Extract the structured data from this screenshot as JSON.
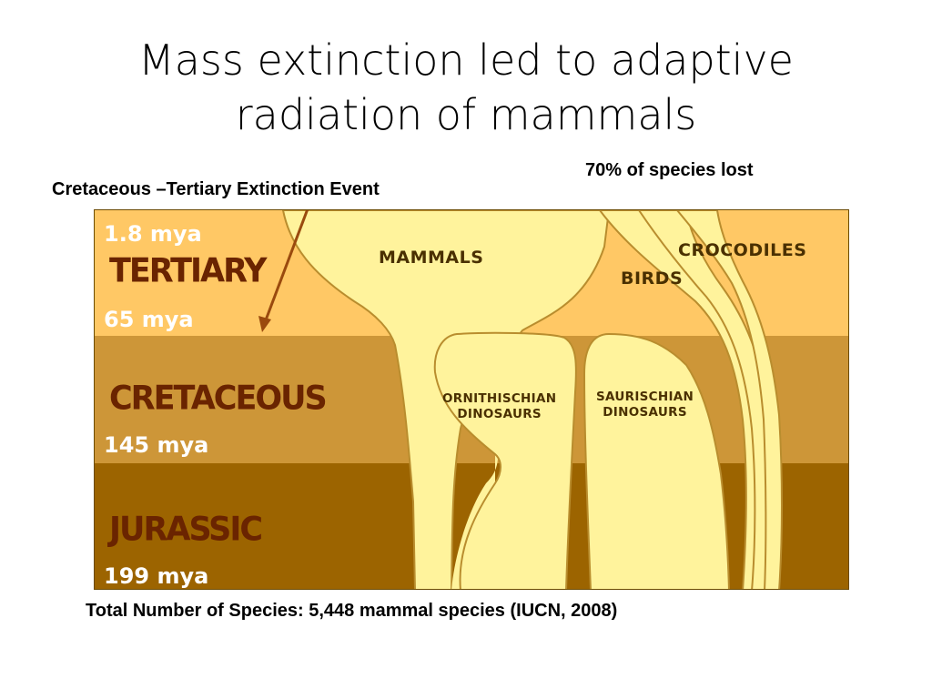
{
  "slide": {
    "title_lines": [
      "Mass extinction led to adaptive",
      "radiation of mammals"
    ],
    "species_lost": "70% of species lost",
    "event_label": "Cretaceous –Tertiary Extinction Event",
    "footer": "Total Number of Species: 5,448 mammal species (IUCN, 2008)"
  },
  "diagram": {
    "periods": {
      "tertiary": "TERTIARY",
      "cretaceous": "CRETACEOUS",
      "jurassic": "JURASSIC"
    },
    "ages": {
      "tertiary_top": "1.8 mya",
      "k_t_boundary": "65 mya",
      "j_k_boundary": "145 mya",
      "jurassic_base": "199 mya"
    },
    "groups": {
      "mammals": "MAMMALS",
      "birds": "BIRDS",
      "crocodiles": "CROCODILES",
      "ornithischian": [
        "ORNITHISCHIAN",
        "DINOSAURS"
      ],
      "saurischian": [
        "SAURISCHIAN",
        "DINOSAURS"
      ]
    },
    "colors": {
      "tertiary_band": "#ffc865",
      "cretaceous_band": "#cd9638",
      "jurassic_band": "#9c6400",
      "lineage_fill": "#fff39c",
      "lineage_edge": "#b98d2e",
      "arrow": "#9a4a0e"
    }
  }
}
